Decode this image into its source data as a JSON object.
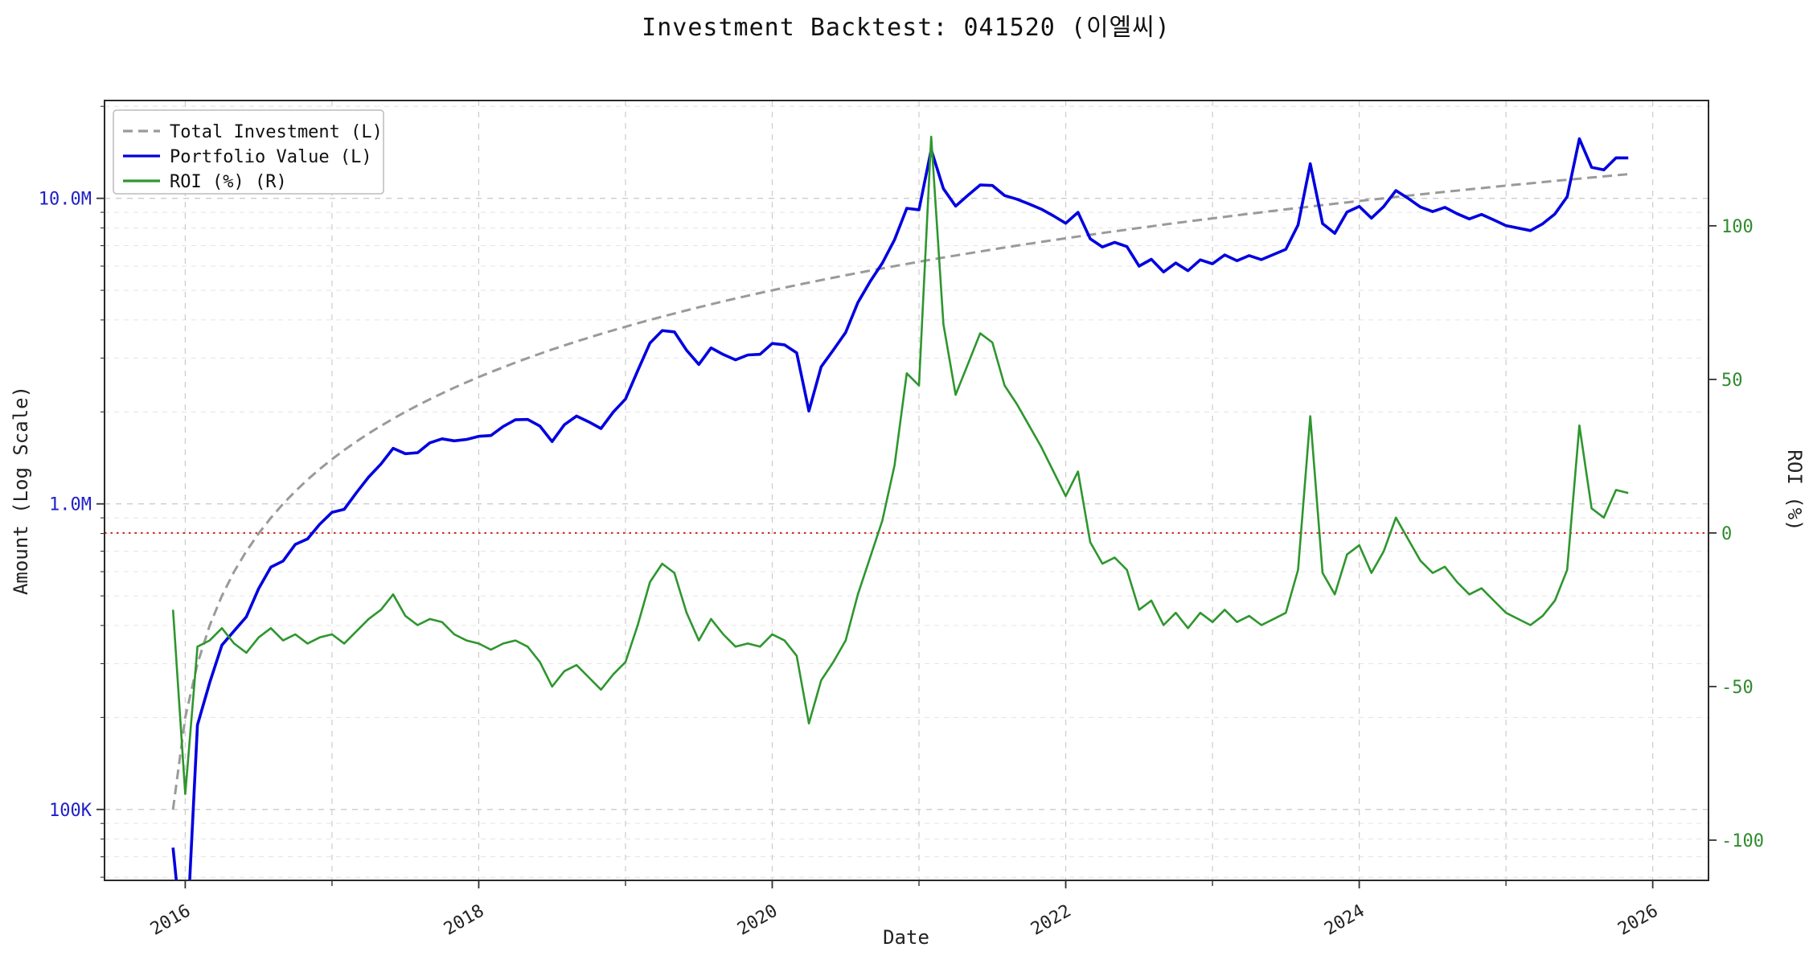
{
  "title": "Investment Backtest: 041520 (이엘씨)",
  "axes": {
    "x_label": "Date",
    "y_left_label": "Amount (Log Scale)",
    "y_right_label": "ROI (%)",
    "xlim": [
      2015.45,
      2026.38
    ],
    "y_left_scale": "log",
    "y_left_lim": [
      58600,
      20900000
    ],
    "y_right_lim": [
      -113.1,
      140.8
    ],
    "x_ticks": [
      {
        "value": 2016,
        "label": "2016"
      },
      {
        "value": 2018,
        "label": "2018"
      },
      {
        "value": 2020,
        "label": "2020"
      },
      {
        "value": 2022,
        "label": "2022"
      },
      {
        "value": 2024,
        "label": "2024"
      },
      {
        "value": 2026,
        "label": "2026"
      }
    ],
    "x_minor_ticks": [
      2016,
      2017,
      2018,
      2019,
      2020,
      2021,
      2022,
      2023,
      2024,
      2025,
      2026
    ],
    "y_left_ticks": [
      {
        "value": 100000,
        "label": "100K"
      },
      {
        "value": 1000000,
        "label": "1.0M"
      },
      {
        "value": 10000000,
        "label": "10.0M"
      }
    ],
    "y_right_ticks": [
      {
        "value": -100,
        "label": "-100"
      },
      {
        "value": -50,
        "label": "-50"
      },
      {
        "value": 0,
        "label": "0"
      },
      {
        "value": 50,
        "label": "50"
      },
      {
        "value": 100,
        "label": "100"
      }
    ],
    "grid": true
  },
  "colors": {
    "total_investment": "#9a9a9a",
    "portfolio_value": "#0000e0",
    "roi": "#2e962e",
    "left_axis_text": "#2020c8",
    "right_axis_text": "#2e8b2e",
    "zero_line": "#cc2222",
    "grid_major": "#cccccc",
    "grid_minor": "#e4e4e4",
    "spine": "#2a2a2a"
  },
  "legend": {
    "position": "upper-left",
    "entries": [
      {
        "label": "Total Investment (L)",
        "color": "#9a9a9a",
        "dash": "12,7"
      },
      {
        "label": "Portfolio Value (L)",
        "color": "#0000e0",
        "dash": ""
      },
      {
        "label": "ROI (%) (R)",
        "color": "#2e962e",
        "dash": ""
      }
    ]
  },
  "chart_data": {
    "type": "line",
    "title": "Investment Backtest: 041520 (이엘씨)",
    "xlabel": "Date",
    "ylabel_left": "Amount (Log Scale)",
    "ylabel_right": "ROI (%)",
    "x_dates": [
      "2015-12",
      "2016-01",
      "2016-02",
      "2016-03",
      "2016-04",
      "2016-05",
      "2016-06",
      "2016-07",
      "2016-08",
      "2016-09",
      "2016-10",
      "2016-11",
      "2016-12",
      "2017-01",
      "2017-02",
      "2017-03",
      "2017-04",
      "2017-05",
      "2017-06",
      "2017-07",
      "2017-08",
      "2017-09",
      "2017-10",
      "2017-11",
      "2017-12",
      "2018-01",
      "2018-02",
      "2018-03",
      "2018-04",
      "2018-05",
      "2018-06",
      "2018-07",
      "2018-08",
      "2018-09",
      "2018-10",
      "2018-11",
      "2018-12",
      "2019-01",
      "2019-02",
      "2019-03",
      "2019-04",
      "2019-05",
      "2019-06",
      "2019-07",
      "2019-08",
      "2019-09",
      "2019-10",
      "2019-11",
      "2019-12",
      "2020-01",
      "2020-02",
      "2020-03",
      "2020-04",
      "2020-05",
      "2020-06",
      "2020-07",
      "2020-08",
      "2020-09",
      "2020-10",
      "2020-11",
      "2020-12",
      "2021-01",
      "2021-02",
      "2021-03",
      "2021-04",
      "2021-05",
      "2021-06",
      "2021-07",
      "2021-08",
      "2021-09",
      "2021-10",
      "2021-11",
      "2021-12",
      "2022-01",
      "2022-02",
      "2022-03",
      "2022-04",
      "2022-05",
      "2022-06",
      "2022-07",
      "2022-08",
      "2022-09",
      "2022-10",
      "2022-11",
      "2022-12",
      "2023-01",
      "2023-02",
      "2023-03",
      "2023-04",
      "2023-05",
      "2023-06",
      "2023-07",
      "2023-08",
      "2023-09",
      "2023-10",
      "2023-11",
      "2023-12",
      "2024-01",
      "2024-02",
      "2024-03",
      "2024-04",
      "2024-05",
      "2024-06",
      "2024-07",
      "2024-08",
      "2024-09",
      "2024-10",
      "2024-11",
      "2024-12",
      "2025-01",
      "2025-02",
      "2025-03",
      "2025-04",
      "2025-05",
      "2025-06",
      "2025-07",
      "2025-08",
      "2025-09",
      "2025-10",
      "2025-11"
    ],
    "series": [
      {
        "name": "Total Investment (L)",
        "axis": "left",
        "unit": "KRW",
        "derivation": "cumulative_monthly",
        "monthly_investment": 100000
      },
      {
        "name": "ROI (%) (R)",
        "axis": "right",
        "unit": "%",
        "values": [
          -25,
          -85,
          -37,
          -35,
          -31,
          -36,
          -39,
          -34,
          -31,
          -35,
          -33,
          -36,
          -34,
          -33,
          -36,
          -32,
          -28,
          -25,
          -20,
          -27,
          -30,
          -28,
          -29,
          -33,
          -35,
          -36,
          -38,
          -36,
          -35,
          -37,
          -42,
          -50,
          -45,
          -43,
          -47,
          -51,
          -46,
          -42,
          -30,
          -16,
          -10,
          -13,
          -26,
          -35,
          -28,
          -33,
          -37,
          -36,
          -37,
          -33,
          -35,
          -40,
          -62,
          -48,
          -42,
          -35,
          -20,
          -8,
          4,
          22,
          52,
          48,
          129,
          68,
          45,
          55,
          65,
          62,
          48,
          42,
          35,
          28,
          20,
          12,
          20,
          -3,
          -10,
          -8,
          -12,
          -25,
          -22,
          -30,
          -26,
          -31,
          -26,
          -29,
          -25,
          -29,
          -27,
          -30,
          -28,
          -26,
          -12,
          38,
          -13,
          -20,
          -7,
          -4,
          -13,
          -6,
          5,
          -2,
          -9,
          -13,
          -11,
          -16,
          -20,
          -18,
          -22,
          -26,
          -28,
          -30,
          -27,
          -22,
          -12,
          35,
          8,
          5,
          14,
          13
        ]
      },
      {
        "name": "Portfolio Value (L)",
        "axis": "left",
        "unit": "KRW",
        "derivation": "total_investment*(1+roi/100)"
      }
    ],
    "reference_lines": [
      {
        "axis": "right",
        "value": 0,
        "style": "dotted",
        "color": "#cc2222"
      }
    ],
    "legend_entries": [
      "Total Investment (L)",
      "Portfolio Value (L)",
      "ROI (%) (R)"
    ]
  }
}
